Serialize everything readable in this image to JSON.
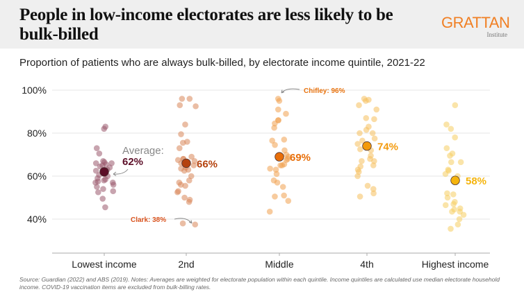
{
  "header": {
    "title": "People in low-income electorates are less likely to be bulk-billed",
    "logo_main": "GRATTAN",
    "logo_sub": "Institute"
  },
  "subtitle": "Proportion of patients who are always bulk-billed, by electorate income quintile, 2021-22",
  "footnote": "Source: Guardian (2022) and ABS (2019). Notes: Averages are weighted for electorate population within each quintile. Income quintiles are calculated use median electorate household income. COVID-19 vaccination items are excluded from bulk-billing rates.",
  "chart_data": {
    "type": "scatter",
    "title": "People in low-income electorates are less likely to be bulk-billed",
    "subtitle": "Proportion of patients who are always bulk-billed, by electorate income quintile, 2021-22",
    "xlabel": "",
    "ylabel": "",
    "categories": [
      "Lowest income",
      "2nd",
      "Middle",
      "4th",
      "Highest income"
    ],
    "ylim": [
      30,
      102
    ],
    "yticks": [
      40,
      60,
      80,
      100
    ],
    "ytick_labels": [
      "40%",
      "60%",
      "80%",
      "100%"
    ],
    "grid": true,
    "series": [
      {
        "name": "Lowest income",
        "color": "#9b5a6e",
        "avg_color": "#5c0f28",
        "average": 62,
        "average_label": "62%",
        "values": [
          82,
          83,
          73,
          70.5,
          67,
          66.5,
          66,
          66,
          65.5,
          65,
          64.5,
          64,
          63,
          62.5,
          61,
          60.5,
          60,
          59,
          58.5,
          58,
          57.5,
          57,
          57,
          56,
          55,
          54,
          53,
          52.5,
          49.5,
          45.5
        ]
      },
      {
        "name": "2nd",
        "color": "#d9875a",
        "avg_color": "#b4420e",
        "average": 66,
        "average_label": "66%",
        "values": [
          96,
          96,
          93,
          92.5,
          84,
          79.5,
          76,
          75.5,
          73,
          69,
          68,
          68,
          67.5,
          67,
          66,
          65,
          64,
          63.5,
          63,
          62.5,
          60,
          58,
          57,
          56,
          55.5,
          53,
          52.5,
          50,
          49,
          48,
          37.5,
          38
        ]
      },
      {
        "name": "Middle",
        "color": "#f1a04f",
        "avg_color": "#e86f0a",
        "average": 69,
        "average_label": "69%",
        "values": [
          96,
          95,
          91,
          89,
          86,
          86,
          84.5,
          82.5,
          77,
          76.5,
          74.5,
          72,
          70,
          69,
          68,
          67.5,
          65.5,
          65,
          65,
          63.5,
          63,
          61,
          58,
          57,
          55,
          51,
          50.5,
          48.5,
          43.5
        ]
      },
      {
        "name": "4th",
        "color": "#f6bf5c",
        "avg_color": "#f39a0c",
        "average": 74,
        "average_label": "74%",
        "values": [
          96,
          95.5,
          95,
          93,
          91,
          87,
          86.5,
          83,
          81.5,
          80,
          80,
          77.5,
          76.5,
          75,
          72.5,
          72,
          69.5,
          68,
          67,
          67,
          65,
          64.5,
          63,
          62,
          60,
          55.5,
          54,
          52,
          50.5
        ]
      },
      {
        "name": "Highest income",
        "color": "#f6cd63",
        "avg_color": "#f5b40c",
        "average": 58,
        "average_label": "58%",
        "values": [
          93,
          84,
          82,
          78,
          73,
          70.5,
          69.5,
          66.5,
          66.5,
          63,
          62.5,
          61,
          60,
          52,
          51.5,
          50,
          48,
          47,
          46.5,
          45,
          44.5,
          43.5,
          43.5,
          42,
          40,
          37.5,
          35.5
        ]
      }
    ],
    "annotations": [
      {
        "text_line1": "Average:",
        "text_line2": "62%",
        "target": "Lowest income average"
      },
      {
        "text": "Clark: 38%",
        "value": 38,
        "category": "2nd",
        "color": "#d9531e"
      },
      {
        "text": "Chifley: 96%",
        "value": 96,
        "category": "Middle",
        "color": "#e8730f"
      }
    ]
  }
}
